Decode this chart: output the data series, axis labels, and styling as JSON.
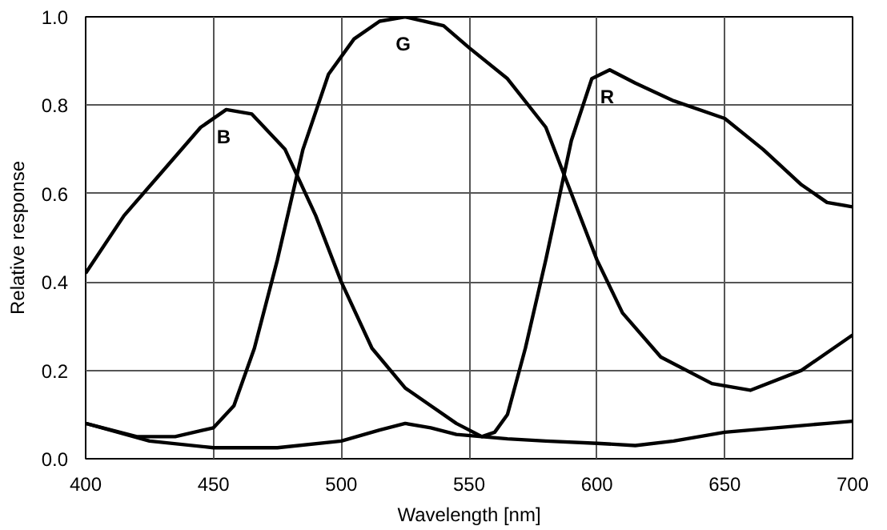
{
  "chart_data": {
    "type": "line",
    "xlabel": "Wavelength [nm]",
    "ylabel": "Relative response",
    "xlim": [
      400,
      700
    ],
    "ylim": [
      0,
      1
    ],
    "xticks": [
      400,
      450,
      500,
      550,
      600,
      650,
      700
    ],
    "yticks": [
      {
        "value": 0,
        "label": "0.0"
      },
      {
        "value": 0.2,
        "label": "0.2"
      },
      {
        "value": 0.4,
        "label": "0.4"
      },
      {
        "value": 0.6,
        "label": "0.6"
      },
      {
        "value": 0.8,
        "label": "0.8"
      },
      {
        "value": 1,
        "label": "1.0"
      }
    ],
    "grid": true,
    "marker": "none",
    "line_style": "solid",
    "series": [
      {
        "name": "B",
        "color": "#000000",
        "x": [
          400,
          415,
          430,
          445,
          455,
          465,
          478,
          490,
          500,
          512,
          525,
          535,
          545,
          555,
          565,
          580,
          600,
          615,
          630,
          650,
          670,
          690,
          700
        ],
        "values": [
          0.42,
          0.55,
          0.65,
          0.75,
          0.79,
          0.78,
          0.7,
          0.55,
          0.4,
          0.25,
          0.16,
          0.12,
          0.08,
          0.05,
          0.045,
          0.04,
          0.035,
          0.03,
          0.04,
          0.06,
          0.07,
          0.08,
          0.085
        ]
      },
      {
        "name": "G",
        "color": "#000000",
        "x": [
          400,
          420,
          435,
          450,
          458,
          466,
          475,
          485,
          495,
          505,
          515,
          525,
          540,
          550,
          565,
          580,
          590,
          600,
          610,
          625,
          645,
          660,
          680,
          700
        ],
        "values": [
          0.08,
          0.05,
          0.05,
          0.07,
          0.12,
          0.25,
          0.45,
          0.7,
          0.87,
          0.95,
          0.99,
          1.0,
          0.98,
          0.93,
          0.86,
          0.75,
          0.6,
          0.45,
          0.33,
          0.23,
          0.17,
          0.155,
          0.2,
          0.28
        ]
      },
      {
        "name": "R",
        "color": "#000000",
        "x": [
          400,
          425,
          450,
          475,
          500,
          515,
          525,
          535,
          545,
          555,
          560,
          565,
          572,
          580,
          590,
          598,
          605,
          615,
          630,
          650,
          665,
          680,
          690,
          700
        ],
        "values": [
          0.08,
          0.04,
          0.025,
          0.025,
          0.04,
          0.065,
          0.08,
          0.07,
          0.055,
          0.05,
          0.06,
          0.1,
          0.25,
          0.45,
          0.72,
          0.86,
          0.88,
          0.85,
          0.81,
          0.77,
          0.7,
          0.62,
          0.58,
          0.57
        ]
      }
    ]
  }
}
